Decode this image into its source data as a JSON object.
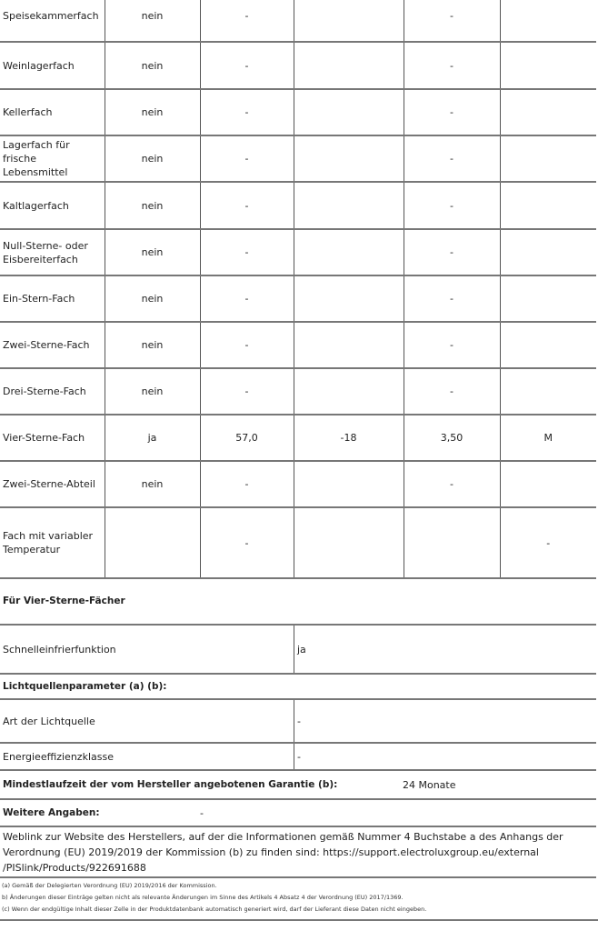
{
  "compartments": [
    {
      "name": "Speisekammerfach",
      "v": [
        "nein",
        "-",
        "",
        "-",
        ""
      ]
    },
    {
      "name": "Weinlagerfach",
      "v": [
        "nein",
        "-",
        "",
        "-",
        ""
      ]
    },
    {
      "name": "Kellerfach",
      "v": [
        "nein",
        "-",
        "",
        "-",
        ""
      ]
    },
    {
      "name": "Lagerfach für frische Lebensmittel",
      "v": [
        "nein",
        "-",
        "",
        "-",
        ""
      ]
    },
    {
      "name": "Kaltlagerfach",
      "v": [
        "nein",
        "-",
        "",
        "-",
        ""
      ]
    },
    {
      "name": "Null-Sterne- oder Eisbereiterfach",
      "v": [
        "nein",
        "-",
        "",
        "-",
        ""
      ]
    },
    {
      "name": "Ein-Stern-Fach",
      "v": [
        "nein",
        "-",
        "",
        "-",
        ""
      ]
    },
    {
      "name": "Zwei-Sterne-Fach",
      "v": [
        "nein",
        "-",
        "",
        "-",
        ""
      ]
    },
    {
      "name": "Drei-Sterne-Fach",
      "v": [
        "nein",
        "-",
        "",
        "-",
        ""
      ]
    },
    {
      "name": "Vier-Sterne-Fach",
      "v": [
        "ja",
        "57,0",
        "-18",
        "3,50",
        "M"
      ]
    },
    {
      "name": "Zwei-Sterne-Abteil",
      "v": [
        "nein",
        "-",
        "",
        "-",
        ""
      ]
    },
    {
      "name": "Fach mit variabler Temperatur",
      "v": [
        "",
        "-",
        "",
        "",
        "-"
      ]
    }
  ],
  "four_star": {
    "heading": "Für Vier-Sterne-Fächer",
    "fast_freeze_label": "Schnelleinfrierfunktion",
    "fast_freeze_value": "ja"
  },
  "light": {
    "heading": "Lichtquellenparameter (a) (b):",
    "type_label": "Art der Lichtquelle",
    "type_value": "-",
    "class_label": "Energieeffizienzklasse",
    "class_value": "-"
  },
  "warranty": {
    "label": "Mindestlaufzeit der vom Hersteller angebotenen Garantie (b):",
    "value": "24 Monate"
  },
  "further": {
    "label": "Weitere Angaben:",
    "value": "-"
  },
  "weblink": "Weblink zur Website des Herstellers, auf der die Informationen gemäß Nummer 4 Buchstabe a des Anhangs der Verordnung (EU) 2019/2019 der Kommission (b) zu finden sind: https://support.electroluxgroup.eu/external /PISlink/Products/922691688",
  "footnotes": [
    "(a) Gemäß der Delegierten Verordnung (EU) 2019/2016 der Kommission.",
    "b) Änderungen dieser Einträge gelten nicht als relevante Änderungen im Sinne des Artikels 4 Absatz 4 der Verordnung (EU) 2017/1369.",
    "(c) Wenn der endgültige Inhalt dieser Zelle in der Produktdatenbank automatisch generiert wird, darf der Lieferant diese Daten nicht eingeben."
  ]
}
